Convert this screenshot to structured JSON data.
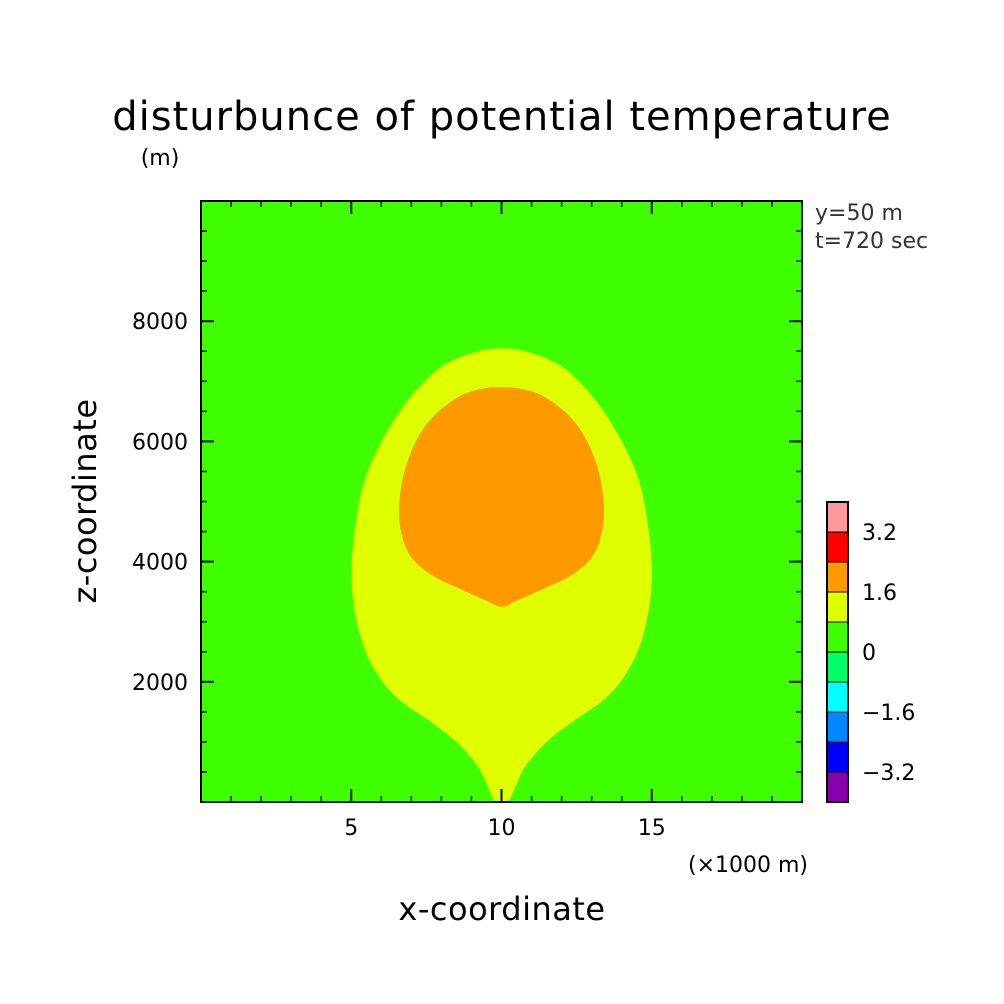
{
  "chart_data": {
    "type": "contour",
    "title": "disturbunce of potential temperature",
    "ylabel_unit": "(m)",
    "xlabel": "x-coordinate",
    "ylabel": "z-coordinate",
    "xunit_label": "(×1000 m)",
    "xlim": [
      0,
      20
    ],
    "ylim": [
      0,
      10000
    ],
    "xticks": [
      5,
      10,
      15
    ],
    "yticks": [
      2000,
      4000,
      6000,
      8000
    ],
    "xtick_labels": [
      "5",
      "10",
      "15"
    ],
    "ytick_labels": [
      "2000",
      "4000",
      "6000",
      "8000"
    ],
    "annotations": [
      "y=50 m",
      "t=720 sec"
    ],
    "background_level_color": "#3fff00",
    "regions": [
      {
        "name": "0 to 1.6",
        "color": "#dfff00",
        "boundary": [
          [
            9.8,
            0
          ],
          [
            9.5,
            300
          ],
          [
            9.2,
            600
          ],
          [
            8.5,
            1000
          ],
          [
            7.6,
            1350
          ],
          [
            6.6,
            1700
          ],
          [
            5.9,
            2100
          ],
          [
            5.4,
            2600
          ],
          [
            5.1,
            3200
          ],
          [
            5.0,
            3800
          ],
          [
            5.1,
            4500
          ],
          [
            5.4,
            5300
          ],
          [
            6.0,
            6000
          ],
          [
            6.9,
            6700
          ],
          [
            8.0,
            7250
          ],
          [
            9.2,
            7500
          ],
          [
            10.0,
            7550
          ],
          [
            10.8,
            7500
          ],
          [
            12.0,
            7250
          ],
          [
            13.1,
            6700
          ],
          [
            14.0,
            6000
          ],
          [
            14.6,
            5300
          ],
          [
            14.9,
            4500
          ],
          [
            15.0,
            3800
          ],
          [
            14.9,
            3200
          ],
          [
            14.6,
            2600
          ],
          [
            14.1,
            2100
          ],
          [
            13.4,
            1700
          ],
          [
            12.4,
            1350
          ],
          [
            11.5,
            1000
          ],
          [
            10.8,
            600
          ],
          [
            10.5,
            300
          ],
          [
            10.2,
            0
          ]
        ]
      },
      {
        "name": "1.6 to 2.4",
        "color": "#ff9900",
        "boundary": [
          [
            10.0,
            3250
          ],
          [
            9.5,
            3350
          ],
          [
            8.6,
            3550
          ],
          [
            7.6,
            3800
          ],
          [
            6.9,
            4150
          ],
          [
            6.6,
            4700
          ],
          [
            6.7,
            5350
          ],
          [
            7.1,
            5950
          ],
          [
            7.7,
            6400
          ],
          [
            8.6,
            6750
          ],
          [
            9.4,
            6880
          ],
          [
            10.0,
            6900
          ],
          [
            10.6,
            6880
          ],
          [
            11.4,
            6750
          ],
          [
            12.3,
            6400
          ],
          [
            12.9,
            5950
          ],
          [
            13.3,
            5350
          ],
          [
            13.4,
            4700
          ],
          [
            13.1,
            4150
          ],
          [
            12.4,
            3800
          ],
          [
            11.4,
            3550
          ],
          [
            10.5,
            3350
          ]
        ]
      }
    ],
    "colorbar": {
      "colors": [
        "#8800aa",
        "#0000ff",
        "#0088ff",
        "#00ffff",
        "#00ff66",
        "#3fff00",
        "#dfff00",
        "#ff9900",
        "#ff0000",
        "#ff9999"
      ],
      "labels": [
        {
          "text": "3.2",
          "level": 8
        },
        {
          "text": "1.6",
          "level": 6
        },
        {
          "text": "0",
          "level": 4
        },
        {
          "text": "-1.6",
          "level": 2
        },
        {
          "text": "-3.2",
          "level": 0
        }
      ]
    }
  }
}
